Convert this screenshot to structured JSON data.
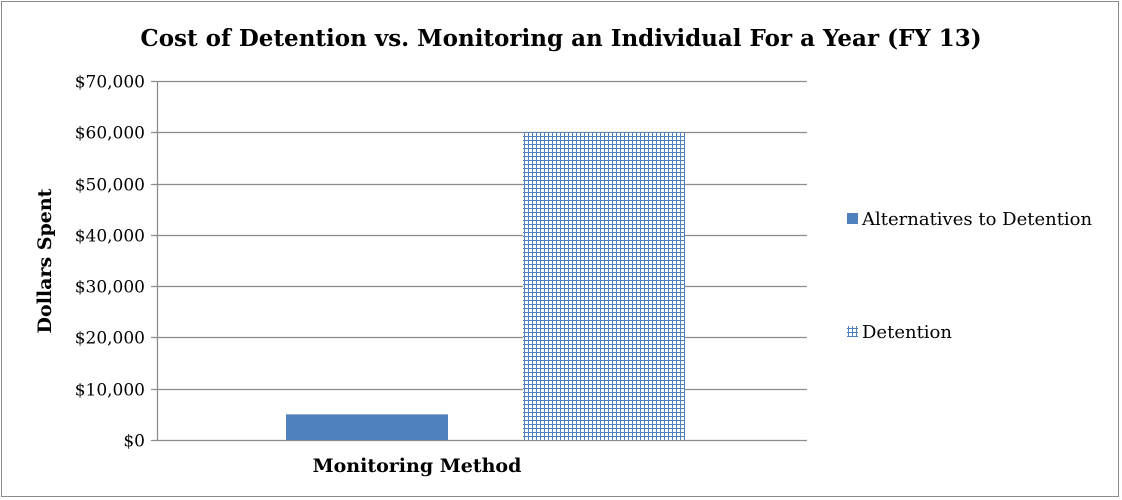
{
  "chart_data": {
    "type": "bar",
    "title": "Cost of Detention vs. Monitoring an Individual For a Year (FY 13)",
    "xlabel": "Monitoring Method",
    "ylabel": "Dollars Spent",
    "ylim": [
      0,
      70000
    ],
    "yticks": [
      0,
      10000,
      20000,
      30000,
      40000,
      50000,
      60000,
      70000
    ],
    "ytick_labels": [
      "$0",
      "$10,000",
      "$20,000",
      "$30,000",
      "$40,000",
      "$50,000",
      "$60,000",
      "$70,000"
    ],
    "categories": [
      "Monitoring Method"
    ],
    "series": [
      {
        "name": "Alternatives to Detention",
        "values": [
          5000
        ],
        "color": "#4f81bd",
        "pattern": "solid"
      },
      {
        "name": "Detention",
        "values": [
          60000
        ],
        "color": "#4f81bd",
        "pattern": "grid"
      }
    ],
    "grid": true,
    "legend_position": "right"
  }
}
